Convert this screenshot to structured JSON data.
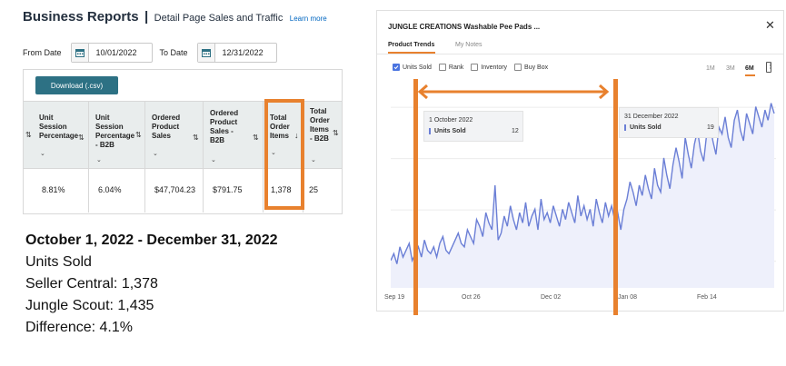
{
  "business_reports": {
    "title": "Business Reports",
    "separator": "|",
    "subtitle": "Detail Page Sales and Traffic",
    "learn_more": "Learn more",
    "from_label": "From Date",
    "from_value": "10/01/2022",
    "to_label": "To Date",
    "to_value": "12/31/2022",
    "download_label": "Download (.csv)",
    "columns": [
      {
        "header": "Unit\nSession\nPercentage",
        "value": "8.81%"
      },
      {
        "header": "Unit\nSession\nPercentage\n- B2B",
        "value": "6.04%"
      },
      {
        "header": "Ordered\nProduct\nSales",
        "value": "$47,704.23"
      },
      {
        "header": "Ordered\nProduct\nSales -\nB2B",
        "value": "$791.75"
      },
      {
        "header": "Total\nOrder\nItems",
        "value": "1,378"
      },
      {
        "header": "Total\nOrder\nItems\n- B2B",
        "value": "25"
      }
    ]
  },
  "summary": {
    "line1": "October 1, 2022 - December 31, 2022",
    "line2": "Units Sold",
    "line3": "Seller Central: 1,378",
    "line4": "Jungle Scout: 1,435",
    "line5": "Difference: 4.1%"
  },
  "jungle_scout": {
    "title": "JUNGLE CREATIONS Washable Pee Pads ...",
    "close_glyph": "✕",
    "tabs": [
      "Product Trends",
      "My Notes"
    ],
    "checkboxes": [
      {
        "label": "Units Sold",
        "checked": true
      },
      {
        "label": "Rank",
        "checked": false
      },
      {
        "label": "Inventory",
        "checked": false
      },
      {
        "label": "Buy Box",
        "checked": false
      }
    ],
    "ranges": [
      "1M",
      "3M",
      "6M"
    ],
    "active_range": "6M",
    "x_ticks": [
      "Sep 19",
      "Oct 26",
      "Dec 02",
      "Jan 08",
      "Feb 14"
    ],
    "tooltip_start": {
      "date": "1 October 2022",
      "series": "Units Sold",
      "value": "12"
    },
    "tooltip_end": {
      "date": "31 December 2022",
      "series": "Units Sold",
      "value": "19"
    },
    "line_color": "#6b7fd6",
    "fill_color": "#eef0fb",
    "highlight_color": "#e8812e"
  },
  "chart_data": {
    "type": "area",
    "series": [
      {
        "values": [
          8,
          10,
          7,
          12,
          9,
          11,
          13,
          8,
          10,
          12,
          9,
          14,
          11,
          10,
          12,
          9,
          13,
          15,
          11,
          10,
          12,
          14,
          16,
          13,
          12,
          17,
          15,
          13,
          20,
          18,
          15,
          22,
          19,
          17,
          30,
          14,
          16,
          21,
          18,
          24,
          20,
          17,
          22,
          19,
          25,
          18,
          21,
          23,
          17,
          26,
          20,
          22,
          19,
          24,
          21,
          18,
          23,
          20,
          25,
          22,
          19,
          27,
          21,
          24,
          20,
          23,
          18,
          26,
          22,
          19,
          25,
          21,
          24,
          20,
          22,
          17,
          23,
          26,
          31,
          28,
          24,
          30,
          27,
          33,
          29,
          26,
          35,
          30,
          28,
          38,
          33,
          29,
          36,
          41,
          37,
          32,
          44,
          39,
          35,
          42,
          46,
          40,
          37,
          45,
          48,
          43,
          39,
          47,
          45,
          50,
          44,
          41,
          49,
          52,
          46,
          43,
          51,
          48,
          45,
          53,
          50,
          47,
          52,
          49,
          54,
          51
        ],
        "note": ""
      }
    ],
    "x_ticks": [
      "Sep 19",
      "Oct 26",
      "Dec 02",
      "Jan 08",
      "Feb 14"
    ],
    "ylim": [
      0,
      60
    ],
    "grid": true,
    "annotations": [
      {
        "date": "1 October 2022",
        "value": 12
      },
      {
        "date": "31 December 2022",
        "value": 19
      }
    ]
  }
}
